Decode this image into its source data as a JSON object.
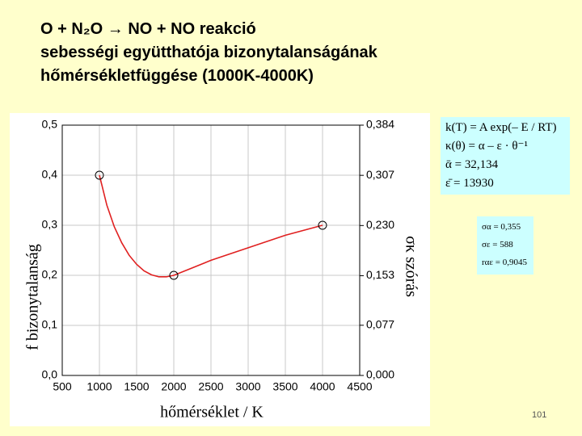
{
  "slide": {
    "title_lines": [
      "O + N₂O → NO + NO reakció",
      "sebességi együtthatója bizonytalanságának",
      "hőmérsékletfüggése (1000K-4000K)"
    ],
    "formulas": [
      "k(T) = A exp(– E / RT)",
      "κ(θ) = α – ε · θ⁻¹",
      "ᾱ = 32,134",
      "ε̄ = 13930"
    ],
    "stats": [
      "σα = 0,355",
      "σε = 588",
      "rαε = 0,9045"
    ],
    "page_number": "101"
  },
  "chart_data": {
    "type": "line",
    "x_label": "hőmérséklet / K",
    "y_label": "f bizonytalanság",
    "y2_label": "σκ szórás",
    "xlim": [
      500,
      4500
    ],
    "xticks": [
      500,
      1000,
      1500,
      2000,
      2500,
      3000,
      3500,
      4000,
      4500
    ],
    "ylim": [
      0,
      0.5
    ],
    "yticks": [
      {
        "value": 0,
        "label": "0,0"
      },
      {
        "value": 0.1,
        "label": "0,1"
      },
      {
        "value": 0.2,
        "label": "0,2"
      },
      {
        "value": 0.3,
        "label": "0,3"
      },
      {
        "value": 0.4,
        "label": "0,4"
      },
      {
        "value": 0.5,
        "label": "0,5"
      }
    ],
    "y2lim": [
      0,
      0.384
    ],
    "y2ticks": [
      {
        "value": 0,
        "label": "0,000"
      },
      {
        "value": 0.077,
        "label": "0,077"
      },
      {
        "value": 0.153,
        "label": "0,153"
      },
      {
        "value": 0.23,
        "label": "0,230"
      },
      {
        "value": 0.307,
        "label": "0,307"
      },
      {
        "value": 0.384,
        "label": "0,384"
      }
    ],
    "grid": true,
    "series": [
      {
        "type": "scatter",
        "color": "#000000",
        "x": [
          1000,
          2000,
          4000
        ],
        "values": [
          0.4,
          0.2,
          0.3
        ]
      },
      {
        "type": "line",
        "color": "#e02020",
        "x": [
          1000,
          1100,
          1200,
          1300,
          1400,
          1500,
          1600,
          1700,
          1800,
          1900,
          2000,
          2250,
          2500,
          3000,
          3500,
          4000
        ],
        "values": [
          0.4,
          0.34,
          0.297,
          0.265,
          0.24,
          0.222,
          0.209,
          0.201,
          0.197,
          0.197,
          0.2,
          0.215,
          0.23,
          0.255,
          0.28,
          0.3
        ]
      }
    ]
  }
}
